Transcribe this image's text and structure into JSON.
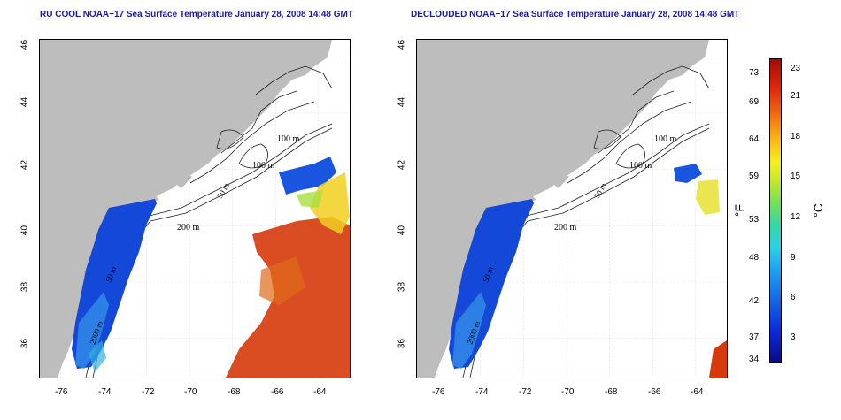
{
  "titles": {
    "left": "RU COOL NOAA−17 Sea Surface Temperature January 28, 2008 14:48 GMT",
    "right": "DECLOUDED NOAA−17 Sea Surface Temperature January 28, 2008 14:48 GMT"
  },
  "axes": {
    "lon_labels": [
      "-76",
      "-74",
      "-72",
      "-70",
      "-68",
      "-66",
      "-64"
    ],
    "lat_labels": [
      "36",
      "38",
      "40",
      "42",
      "44",
      "46"
    ]
  },
  "contours": {
    "labels": [
      "100 m",
      "100 m",
      "50 m",
      "200 m",
      "50 m",
      "2000 m"
    ]
  },
  "colorbar": {
    "fahrenheit_ticks": [
      "73",
      "69",
      "64",
      "59",
      "53",
      "48",
      "42",
      "37",
      "34"
    ],
    "celsius_ticks": [
      "23",
      "21",
      "18",
      "15",
      "12",
      "9",
      "6",
      "3"
    ],
    "fahrenheit_unit": "°F",
    "celsius_unit": "°C"
  },
  "colors": {
    "land": "#bdbdbd",
    "title": "#1a1aa0",
    "cold": "#1448d8",
    "warm": "#e03a0a"
  }
}
